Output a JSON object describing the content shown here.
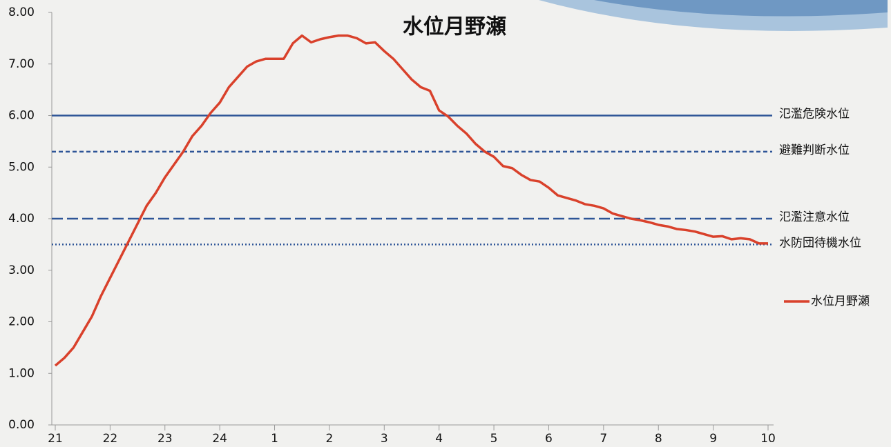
{
  "chart_data": {
    "type": "line",
    "title": "水位月野瀬",
    "x": [
      0,
      10,
      20,
      30,
      40,
      50,
      60,
      70,
      80,
      90,
      100,
      110,
      120,
      130,
      140,
      150,
      160,
      170,
      180,
      190,
      200,
      210,
      220,
      230,
      240,
      250,
      260,
      270,
      280,
      290,
      300,
      310,
      320,
      330,
      340,
      350,
      360,
      370,
      380,
      390,
      400,
      410,
      420,
      430,
      440,
      450,
      460,
      470,
      480,
      490,
      500,
      510,
      520,
      530,
      540,
      550,
      560,
      570,
      580,
      590,
      600,
      610,
      620,
      630,
      640,
      650,
      660,
      670,
      680,
      690,
      700,
      710,
      720,
      730,
      740,
      750,
      760,
      770,
      780
    ],
    "series": [
      {
        "name": "水位月野瀬",
        "color": "#d9412b",
        "values": [
          1.15,
          1.3,
          1.5,
          1.8,
          2.1,
          2.5,
          2.85,
          3.2,
          3.55,
          3.9,
          4.25,
          4.5,
          4.8,
          5.05,
          5.3,
          5.6,
          5.8,
          6.05,
          6.25,
          6.55,
          6.75,
          6.95,
          7.05,
          7.1,
          7.1,
          7.1,
          7.4,
          7.55,
          7.42,
          7.48,
          7.52,
          7.55,
          7.55,
          7.5,
          7.4,
          7.42,
          7.25,
          7.1,
          6.9,
          6.7,
          6.55,
          6.48,
          6.1,
          5.98,
          5.8,
          5.65,
          5.45,
          5.3,
          5.2,
          5.02,
          4.98,
          4.85,
          4.75,
          4.72,
          4.6,
          4.45,
          4.4,
          4.35,
          4.28,
          4.25,
          4.2,
          4.1,
          4.05,
          4.0,
          3.97,
          3.93,
          3.88,
          3.85,
          3.8,
          3.78,
          3.75,
          3.7,
          3.65,
          3.66,
          3.6,
          3.62,
          3.6,
          3.52,
          3.52
        ]
      }
    ],
    "reference_lines": [
      {
        "label": "氾濫危険水位",
        "value": 6,
        "style": "solid",
        "color": "#2e5597"
      },
      {
        "label": "避難判断水位",
        "value": 5.3,
        "style": "dashed",
        "color": "#2e5597"
      },
      {
        "label": "氾濫注意水位",
        "value": 4,
        "style": "longdash",
        "color": "#2e5597"
      },
      {
        "label": "水防団待機水位",
        "value": 3.5,
        "style": "dotted",
        "color": "#2e5597"
      }
    ],
    "xlim": [
      0,
      780
    ],
    "xticks": [
      {
        "value": 0,
        "label": "21"
      },
      {
        "value": 60,
        "label": "22"
      },
      {
        "value": 120,
        "label": "23"
      },
      {
        "value": 180,
        "label": "24"
      },
      {
        "value": 240,
        "label": "1"
      },
      {
        "value": 300,
        "label": "2"
      },
      {
        "value": 360,
        "label": "3"
      },
      {
        "value": 420,
        "label": "4"
      },
      {
        "value": 480,
        "label": "5"
      },
      {
        "value": 540,
        "label": "6"
      },
      {
        "value": 600,
        "label": "7"
      },
      {
        "value": 660,
        "label": "8"
      },
      {
        "value": 720,
        "label": "9"
      },
      {
        "value": 780,
        "label": "10"
      }
    ],
    "ylim": [
      0,
      8
    ],
    "yticks": [
      {
        "value": 0,
        "label": "0.00"
      },
      {
        "value": 1,
        "label": "1.00"
      },
      {
        "value": 2,
        "label": "2.00"
      },
      {
        "value": 3,
        "label": "3.00"
      },
      {
        "value": 4,
        "label": "4.00"
      },
      {
        "value": 5,
        "label": "5.00"
      },
      {
        "value": 6,
        "label": "6.00"
      },
      {
        "value": 7,
        "label": "7.00"
      },
      {
        "value": 8,
        "label": "8.00"
      }
    ],
    "legend": "right"
  }
}
